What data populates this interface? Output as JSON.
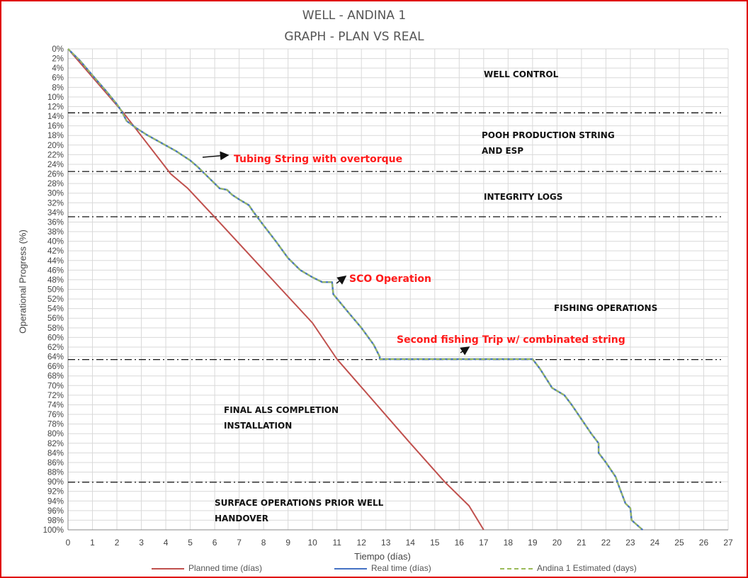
{
  "colors": {
    "frame": "#e00000",
    "planned": "#c0504d",
    "real": "#4472c4",
    "estimated": "#9bbb59",
    "annotation": "#ff1a1a",
    "grid": "#d9d9d9"
  },
  "chart_data": {
    "type": "line",
    "title": "WELL -  ANDINA 1",
    "subtitle": "GRAPH  - PLAN VS REAL",
    "xlabel": "Tiempo (días)",
    "ylabel": "Operational Progress (%)",
    "xlim": [
      0,
      27
    ],
    "ylim": [
      0,
      100
    ],
    "y_inverted": true,
    "grid": true,
    "legend_position": "bottom",
    "x_ticks": [
      "0",
      "1",
      "2",
      "3",
      "4",
      "5",
      "6",
      "7",
      "8",
      "9",
      "10",
      "11",
      "12",
      "13",
      "14",
      "15",
      "16",
      "17",
      "18",
      "19",
      "20",
      "21",
      "22",
      "23",
      "24",
      "25",
      "26",
      "27"
    ],
    "y_ticks": [
      "0%",
      "2%",
      "4%",
      "6%",
      "8%",
      "10%",
      "12%",
      "14%",
      "16%",
      "18%",
      "20%",
      "22%",
      "24%",
      "26%",
      "28%",
      "30%",
      "32%",
      "34%",
      "36%",
      "38%",
      "40%",
      "42%",
      "44%",
      "46%",
      "48%",
      "50%",
      "52%",
      "54%",
      "56%",
      "58%",
      "60%",
      "62%",
      "64%",
      "66%",
      "68%",
      "70%",
      "72%",
      "74%",
      "76%",
      "78%",
      "80%",
      "82%",
      "84%",
      "86%",
      "88%",
      "90%",
      "92%",
      "94%",
      "96%",
      "98%",
      "100%"
    ],
    "series": [
      {
        "name": "Planned time (días)",
        "points": [
          [
            0,
            0
          ],
          [
            2.3,
            13.5
          ],
          [
            4.2,
            26
          ],
          [
            4.9,
            29
          ],
          [
            6,
            35
          ],
          [
            8,
            46
          ],
          [
            10,
            57
          ],
          [
            11,
            64.5
          ],
          [
            14,
            82
          ],
          [
            15.4,
            90
          ],
          [
            16.4,
            95
          ],
          [
            17,
            100
          ]
        ]
      },
      {
        "name": "Real time (días)",
        "points": [
          [
            0,
            0
          ],
          [
            0.5,
            2.5
          ],
          [
            1,
            5.5
          ],
          [
            1.6,
            9
          ],
          [
            2,
            11.5
          ],
          [
            2.2,
            13
          ],
          [
            2.4,
            15
          ],
          [
            2.8,
            16.5
          ],
          [
            3.2,
            17.8
          ],
          [
            3.8,
            19.5
          ],
          [
            4.4,
            21.2
          ],
          [
            5.0,
            23.2
          ],
          [
            5.3,
            24.5
          ],
          [
            5.8,
            27
          ],
          [
            6.2,
            29
          ],
          [
            6.5,
            29.3
          ],
          [
            6.7,
            30.3
          ],
          [
            7,
            31.3
          ],
          [
            7.4,
            32.5
          ],
          [
            7.6,
            34
          ],
          [
            8,
            36.7
          ],
          [
            8.5,
            40
          ],
          [
            9,
            43.5
          ],
          [
            9.5,
            46
          ],
          [
            10,
            47.5
          ],
          [
            10.4,
            48.5
          ],
          [
            10.8,
            48.5
          ],
          [
            10.85,
            51
          ],
          [
            11.5,
            55
          ],
          [
            12,
            58
          ],
          [
            12.5,
            61.5
          ],
          [
            12.75,
            64
          ],
          [
            12.75,
            64.5
          ],
          [
            16,
            64.5
          ],
          [
            19,
            64.5
          ],
          [
            19.3,
            66.5
          ],
          [
            19.8,
            70.5
          ],
          [
            20.3,
            72
          ],
          [
            20.6,
            74
          ],
          [
            21,
            77
          ],
          [
            21.4,
            80
          ],
          [
            21.7,
            82
          ],
          [
            21.7,
            84
          ],
          [
            22,
            86
          ],
          [
            22.4,
            89
          ],
          [
            22.5,
            90.5
          ],
          [
            22.8,
            94.5
          ],
          [
            23,
            95.5
          ],
          [
            23.05,
            98
          ],
          [
            23.5,
            100
          ]
        ]
      },
      {
        "name": "Andina 1 Estimated (days)",
        "points": [
          [
            0,
            0
          ],
          [
            0.5,
            2.5
          ],
          [
            1,
            5.5
          ],
          [
            1.6,
            9
          ],
          [
            2,
            11.5
          ],
          [
            2.2,
            13
          ],
          [
            2.4,
            15
          ],
          [
            2.8,
            16.5
          ],
          [
            3.2,
            17.8
          ],
          [
            3.8,
            19.5
          ],
          [
            4.4,
            21.2
          ],
          [
            5.0,
            23.2
          ],
          [
            5.3,
            24.5
          ],
          [
            5.8,
            27
          ],
          [
            6.2,
            29
          ],
          [
            6.5,
            29.3
          ],
          [
            6.7,
            30.3
          ],
          [
            7,
            31.3
          ],
          [
            7.4,
            32.5
          ],
          [
            7.6,
            34
          ],
          [
            8,
            36.7
          ],
          [
            8.5,
            40
          ],
          [
            9,
            43.5
          ],
          [
            9.5,
            46
          ],
          [
            10,
            47.5
          ],
          [
            10.4,
            48.5
          ],
          [
            10.8,
            48.5
          ],
          [
            10.85,
            51
          ],
          [
            11.5,
            55
          ],
          [
            12,
            58
          ],
          [
            12.5,
            61.5
          ],
          [
            12.75,
            64
          ],
          [
            12.75,
            64.5
          ],
          [
            16,
            64.5
          ],
          [
            19,
            64.5
          ],
          [
            19.3,
            66.5
          ],
          [
            19.8,
            70.5
          ],
          [
            20.3,
            72
          ],
          [
            20.6,
            74
          ],
          [
            21,
            77
          ],
          [
            21.4,
            80
          ],
          [
            21.7,
            82
          ],
          [
            21.7,
            84
          ],
          [
            22,
            86
          ],
          [
            22.4,
            89
          ],
          [
            22.5,
            90.5
          ],
          [
            22.8,
            94.5
          ],
          [
            23,
            95.5
          ],
          [
            23.05,
            98
          ],
          [
            23.5,
            100
          ]
        ]
      }
    ],
    "phase_lines": [
      13.3,
      25.5,
      34.9,
      64.6,
      90.1
    ],
    "zones": [
      {
        "lines": [
          "WELL CONTROL"
        ]
      },
      {
        "lines": [
          "POOH PRODUCTION STRING",
          "AND ESP"
        ]
      },
      {
        "lines": [
          "INTEGRITY LOGS"
        ]
      },
      {
        "lines": [
          "FISHING OPERATIONS"
        ]
      },
      {
        "lines": [
          "FINAL ALS COMPLETION",
          "INSTALLATION"
        ]
      },
      {
        "lines": [
          "SURFACE OPERATIONS PRIOR WELL",
          "HANDOVER"
        ]
      }
    ],
    "annotations": [
      {
        "text": "Tubing String with overtorque"
      },
      {
        "text": "SCO Operation"
      },
      {
        "text": "Second fishing Trip w/ combinated string"
      }
    ]
  }
}
